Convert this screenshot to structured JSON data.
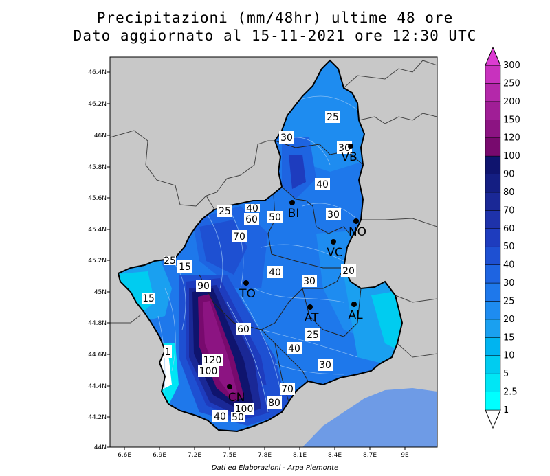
{
  "title": {
    "line1": "Precipitazioni (mm/48hr) ultime 48 ore",
    "line2": "Dato aggiornato al 15-11-2021 ore 12:30 UTC"
  },
  "axes": {
    "lat_ticks": [
      "46.4N",
      "46.2N",
      "46N",
      "45.8N",
      "45.6N",
      "45.4N",
      "45.2N",
      "45N",
      "44.8N",
      "44.6N",
      "44.4N",
      "44.2N",
      "44N"
    ],
    "lon_ticks": [
      "6.6E",
      "6.9E",
      "7.2E",
      "7.5E",
      "7.8E",
      "8.1E",
      "8.4E",
      "8.7E",
      "9E"
    ]
  },
  "legend": {
    "levels": [
      "1",
      "2.5",
      "5",
      "10",
      "15",
      "20",
      "25",
      "30",
      "40",
      "50",
      "60",
      "70",
      "80",
      "90",
      "100",
      "120",
      "150",
      "200",
      "250",
      "300"
    ],
    "colors": [
      "#00ffff",
      "#00e6f5",
      "#00ccf0",
      "#00b4f0",
      "#1aa0f0",
      "#1e8cf0",
      "#1e78eb",
      "#1e64e1",
      "#1e50d2",
      "#1e3cbe",
      "#1e32aa",
      "#1a2896",
      "#141e82",
      "#0f146e",
      "#780a6e",
      "#8c1482",
      "#a01e96",
      "#b428aa",
      "#c832be",
      "#dc3cd2"
    ],
    "cap_color": "#dc3cd2"
  },
  "cities": [
    {
      "name": "VB"
    },
    {
      "name": "BI"
    },
    {
      "name": "NO"
    },
    {
      "name": "VC"
    },
    {
      "name": "TO"
    },
    {
      "name": "AT"
    },
    {
      "name": "AL"
    },
    {
      "name": "CN"
    }
  ],
  "contour_labels": [
    "25",
    "30",
    "30",
    "40",
    "40",
    "25",
    "60",
    "70",
    "50",
    "30",
    "20",
    "15",
    "25",
    "15",
    "90",
    "40",
    "30",
    "60",
    "25",
    "40",
    "30",
    "120",
    "100",
    "70",
    "80",
    "100",
    "40",
    "50",
    "1"
  ],
  "credit": "Dati ed Elaborazioni - Arpa Piemonte"
}
